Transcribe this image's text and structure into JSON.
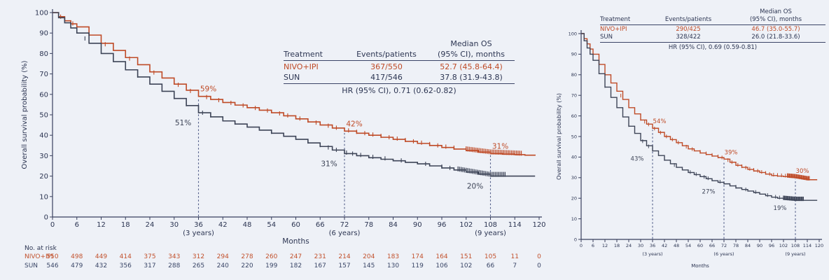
{
  "page": {
    "background": "#eef1f7"
  },
  "chart_data": [
    {
      "id": "left",
      "type": "line",
      "subtype": "kaplan-meier-step",
      "title": "",
      "ylabel": "Overall survival probability (%)",
      "xlabel": "Months",
      "xlim": [
        0,
        120
      ],
      "ylim": [
        0,
        100
      ],
      "x_ticks": [
        0,
        6,
        12,
        18,
        24,
        30,
        36,
        42,
        48,
        54,
        60,
        66,
        72,
        78,
        84,
        90,
        96,
        102,
        108,
        114,
        120
      ],
      "y_ticks": [
        0,
        10,
        20,
        30,
        40,
        50,
        60,
        70,
        80,
        90,
        100
      ],
      "year_marks": [
        {
          "month": 36,
          "label": "(3 years)"
        },
        {
          "month": 72,
          "label": "(6 years)"
        },
        {
          "month": 108,
          "label": "(9 years)"
        }
      ],
      "series": [
        {
          "name": "NIVO+IPI",
          "color": "#bf4a26",
          "points": [
            [
              0,
              100
            ],
            [
              3,
              96
            ],
            [
              6,
              93
            ],
            [
              12,
              85
            ],
            [
              18,
              78
            ],
            [
              24,
              71
            ],
            [
              30,
              65
            ],
            [
              36,
              59
            ],
            [
              42,
              56
            ],
            [
              48,
              53.5
            ],
            [
              54,
              51
            ],
            [
              60,
              48
            ],
            [
              66,
              45
            ],
            [
              72,
              42
            ],
            [
              78,
              40
            ],
            [
              84,
              38
            ],
            [
              90,
              36
            ],
            [
              96,
              34
            ],
            [
              102,
              32.5
            ],
            [
              108,
              31
            ],
            [
              114,
              30.5
            ],
            [
              119,
              30
            ]
          ],
          "censor_months": [
            2,
            5,
            13,
            19,
            25,
            31,
            34,
            38,
            41,
            44,
            47,
            50,
            53,
            56,
            58,
            61,
            63,
            65,
            68,
            70,
            73,
            75,
            77,
            79,
            81,
            83,
            85,
            87,
            89,
            91,
            93,
            95,
            97,
            99
          ],
          "censor_dense": {
            "from": 102,
            "to": 116,
            "step": 0.4
          }
        },
        {
          "name": "SUN",
          "color": "#3d4457",
          "points": [
            [
              0,
              100
            ],
            [
              3,
              95
            ],
            [
              6,
              90
            ],
            [
              12,
              80
            ],
            [
              18,
              72
            ],
            [
              24,
              65
            ],
            [
              30,
              58
            ],
            [
              36,
              51
            ],
            [
              42,
              47
            ],
            [
              48,
              44
            ],
            [
              54,
              41
            ],
            [
              60,
              38
            ],
            [
              66,
              34.5
            ],
            [
              72,
              31
            ],
            [
              78,
              29
            ],
            [
              84,
              27.5
            ],
            [
              90,
              26
            ],
            [
              96,
              24
            ],
            [
              102,
              22
            ],
            [
              108,
              20
            ],
            [
              114,
              20
            ],
            [
              119,
              20
            ]
          ],
          "censor_months": [
            8,
            21,
            30,
            33,
            37,
            39,
            45,
            54,
            63,
            66,
            68,
            70,
            72.5,
            74,
            76,
            79,
            82,
            86,
            92,
            96,
            98
          ],
          "censor_dense": {
            "from": 100,
            "to": 112,
            "step": 0.4
          }
        }
      ],
      "milestones": [
        {
          "month": 36,
          "labels": [
            {
              "series": 0,
              "text": "59%"
            },
            {
              "series": 1,
              "text": "51%"
            }
          ]
        },
        {
          "month": 72,
          "labels": [
            {
              "series": 0,
              "text": "42%"
            },
            {
              "series": 1,
              "text": "31%"
            }
          ]
        },
        {
          "month": 108,
          "labels": [
            {
              "series": 0,
              "text": "31%"
            },
            {
              "series": 1,
              "text": "20%"
            }
          ]
        }
      ],
      "table": {
        "col1": "Treatment",
        "col2": "Events/patients",
        "col3_line1": "Median OS",
        "col3_line2": "(95% CI), months",
        "rows": [
          {
            "treatment": "NIVO+IPI",
            "events": "367/550",
            "median": "52.7 (45.8-64.4)"
          },
          {
            "treatment": "SUN",
            "events": "417/546",
            "median": "37.8 (31.9-43.8)"
          }
        ],
        "hr_text": "HR (95% CI), 0.71 (0.62-0.82)"
      },
      "at_risk": {
        "title": "No. at risk",
        "rows": [
          {
            "name": "NIVO+IPI",
            "color": "#c2512c",
            "values": [
              550,
              498,
              449,
              414,
              375,
              343,
              312,
              294,
              278,
              260,
              247,
              231,
              214,
              204,
              183,
              174,
              164,
              151,
              105,
              11,
              0
            ]
          },
          {
            "name": "SUN",
            "color": "#394566",
            "values": [
              546,
              479,
              432,
              356,
              317,
              288,
              265,
              240,
              220,
              199,
              182,
              167,
              157,
              145,
              130,
              119,
              106,
              102,
              66,
              7,
              0
            ]
          }
        ]
      }
    },
    {
      "id": "right",
      "type": "line",
      "subtype": "kaplan-meier-step",
      "title": "",
      "ylabel": "Overall survival probability (%)",
      "xlabel": "Months",
      "xlim": [
        0,
        120
      ],
      "ylim": [
        0,
        100
      ],
      "x_ticks": [
        0,
        6,
        12,
        18,
        24,
        30,
        36,
        42,
        48,
        54,
        60,
        66,
        72,
        78,
        84,
        90,
        96,
        102,
        108,
        114,
        120
      ],
      "y_ticks": [
        0,
        10,
        20,
        30,
        40,
        50,
        60,
        70,
        80,
        90,
        100
      ],
      "year_marks": [
        {
          "month": 36,
          "label": "(3 years)"
        },
        {
          "month": 72,
          "label": "(6 years)"
        },
        {
          "month": 108,
          "label": "(9 years)"
        }
      ],
      "series": [
        {
          "name": "NIVO+IPI",
          "color": "#bf4a26",
          "points": [
            [
              0,
              100
            ],
            [
              3,
              95
            ],
            [
              6,
              90
            ],
            [
              12,
              80
            ],
            [
              18,
              72
            ],
            [
              24,
              64
            ],
            [
              30,
              58
            ],
            [
              36,
              54
            ],
            [
              42,
              50
            ],
            [
              48,
              47
            ],
            [
              54,
              44
            ],
            [
              60,
              42
            ],
            [
              66,
              40.5
            ],
            [
              72,
              39
            ],
            [
              78,
              36
            ],
            [
              84,
              34
            ],
            [
              90,
              32.5
            ],
            [
              96,
              31
            ],
            [
              102,
              30.5
            ],
            [
              108,
              30
            ],
            [
              114,
              29
            ],
            [
              119,
              29
            ]
          ],
          "censor_months": [
            9,
            20,
            30,
            32,
            34,
            37,
            40,
            43,
            46,
            49,
            53,
            56,
            60,
            63,
            66,
            69,
            71,
            74,
            76,
            79,
            81,
            83,
            85,
            87,
            89,
            91,
            93,
            95,
            97,
            99,
            101,
            103
          ],
          "censor_dense": {
            "from": 104,
            "to": 115,
            "step": 0.5
          }
        },
        {
          "name": "SUN",
          "color": "#3d4457",
          "points": [
            [
              0,
              100
            ],
            [
              3,
              93
            ],
            [
              6,
              87
            ],
            [
              12,
              74
            ],
            [
              18,
              64
            ],
            [
              24,
              55
            ],
            [
              30,
              48
            ],
            [
              36,
              43
            ],
            [
              42,
              38.5
            ],
            [
              48,
              35
            ],
            [
              54,
              32.5
            ],
            [
              60,
              30.5
            ],
            [
              66,
              28.5
            ],
            [
              72,
              27
            ],
            [
              78,
              25
            ],
            [
              84,
              23.5
            ],
            [
              90,
              22
            ],
            [
              96,
              20.5
            ],
            [
              102,
              19.5
            ],
            [
              108,
              19
            ],
            [
              114,
              19
            ],
            [
              119,
              19
            ]
          ],
          "censor_months": [
            12,
            24,
            31,
            34,
            42,
            47,
            55,
            58,
            62,
            64,
            70,
            78,
            83,
            88,
            94,
            98,
            100
          ],
          "censor_dense": {
            "from": 102,
            "to": 112,
            "step": 0.5
          }
        }
      ],
      "milestones": [
        {
          "month": 36,
          "labels": [
            {
              "series": 0,
              "text": "54%"
            },
            {
              "series": 1,
              "text": "43%"
            }
          ]
        },
        {
          "month": 72,
          "labels": [
            {
              "series": 0,
              "text": "39%"
            },
            {
              "series": 1,
              "text": "27%"
            }
          ]
        },
        {
          "month": 108,
          "labels": [
            {
              "series": 0,
              "text": "30%"
            },
            {
              "series": 1,
              "text": "19%"
            }
          ]
        }
      ],
      "table": {
        "col1": "Treatment",
        "col2": "Events/patients",
        "col3_line1": "Median OS",
        "col3_line2": "(95% CI), months",
        "rows": [
          {
            "treatment": "NIVO+IPI",
            "events": "290/425",
            "median": "46.7 (35.0-55.7)"
          },
          {
            "treatment": "SUN",
            "events": "328/422",
            "median": "26.0 (21.8-33.6)"
          }
        ],
        "hr_text": "HR (95% CI), 0.69 (0.59-0.81)"
      },
      "at_risk": null
    }
  ]
}
